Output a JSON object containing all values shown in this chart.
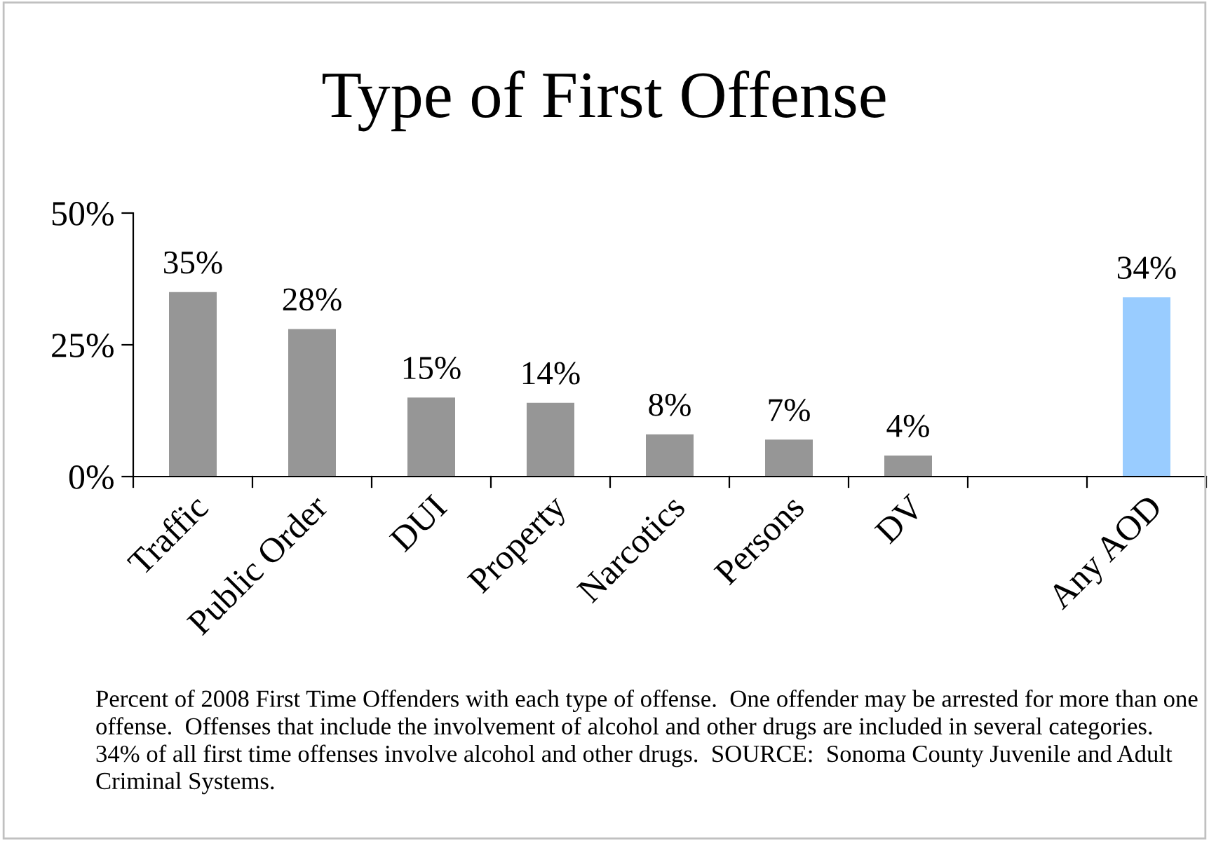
{
  "chart_data": {
    "type": "bar",
    "title": "Type of First Offense",
    "categories": [
      "Traffic",
      "Public Order",
      "DUI",
      "Property",
      "Narcotics",
      "Persons",
      "DV",
      null,
      "Any AOD"
    ],
    "values": [
      35,
      28,
      15,
      14,
      8,
      7,
      4,
      null,
      34
    ],
    "colors": [
      "#969696",
      "#969696",
      "#969696",
      "#969696",
      "#969696",
      "#969696",
      "#969696",
      "#969696",
      "#99ccff"
    ],
    "value_labels": [
      "35%",
      "28%",
      "15%",
      "14%",
      "8%",
      "7%",
      "4%",
      null,
      "34%"
    ],
    "ylim": [
      0,
      50
    ],
    "yticks": [
      {
        "value": 0,
        "label": "0%"
      },
      {
        "value": 25,
        "label": "25%"
      },
      {
        "value": 50,
        "label": "50%"
      }
    ],
    "grid": false,
    "legend": false,
    "annotations": [
      "Percent of 2008 First Time Offenders with each type of offense.  One offender may be arrested for more than one offense.  Offenses that include the involvement of alcohol and other drugs are included in several categories.  34% of all first time offenses involve alcohol and other drugs.  SOURCE:  Sonoma County Juvenile and Adult Criminal Systems."
    ]
  }
}
